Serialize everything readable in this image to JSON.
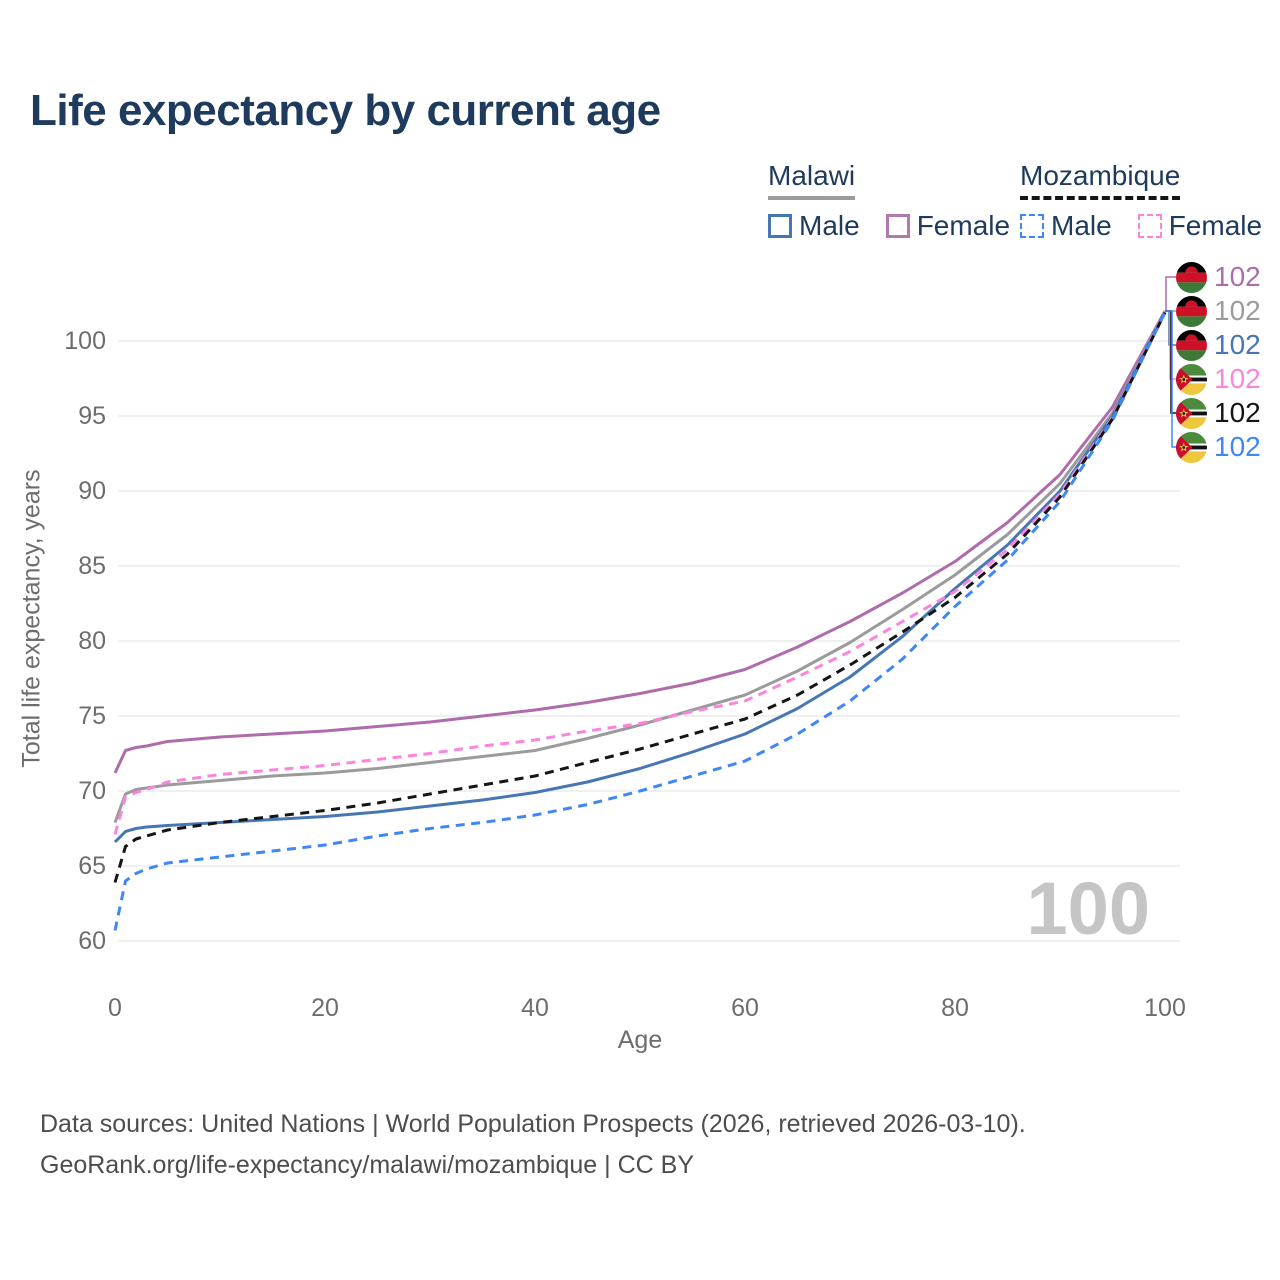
{
  "title": "Life expectancy by current age",
  "legend": {
    "groups": [
      {
        "label": "Malawi",
        "line_style": "solid",
        "line_color": "#9b9b9b",
        "items": [
          {
            "label": "Male",
            "color": "#4677b4"
          },
          {
            "label": "Female",
            "color": "#b279ae"
          }
        ]
      },
      {
        "label": "Mozambique",
        "line_style": "dashed",
        "line_color": "#151515",
        "items": [
          {
            "label": "Male",
            "color": "#3f87f5"
          },
          {
            "label": "Female",
            "color": "#fb84dc"
          }
        ]
      }
    ]
  },
  "y_axis": {
    "title": "Total life expectancy, years",
    "ticks": [
      60,
      65,
      70,
      75,
      80,
      85,
      90,
      95,
      100
    ]
  },
  "x_axis": {
    "title": "Age",
    "ticks": [
      0,
      20,
      40,
      60,
      80,
      100
    ]
  },
  "watermark": "100",
  "footer": {
    "line1": "Data sources: United Nations | World Population Prospects (2026, retrieved 2026-03-10).",
    "line2": "GeoRank.org/life-expectancy/malawi/mozambique | CC BY"
  },
  "colors": {
    "grid": "#ececec",
    "axis_text": "#6d6d6d",
    "title_text": "#1e3a5c",
    "watermark": "#c5c5c5"
  },
  "chart_data": {
    "type": "line",
    "title": "Life expectancy by current age",
    "xlabel": "Age",
    "ylabel": "Total life expectancy, years",
    "xlim": [
      0,
      100
    ],
    "ylim": [
      58.5,
      104.5
    ],
    "grid": "horizontal",
    "legend_position": "top-right",
    "x": [
      0,
      1,
      2,
      3,
      5,
      10,
      15,
      20,
      25,
      30,
      35,
      40,
      45,
      50,
      55,
      60,
      65,
      70,
      75,
      80,
      85,
      90,
      95,
      100
    ],
    "series": [
      {
        "name": "Malawi Female",
        "country": "Malawi",
        "sex": "Female",
        "color": "#ae6cac",
        "dashed": false,
        "flag": "malawi-flag-icon",
        "end_label": "102",
        "values": [
          71.2,
          72.7,
          72.9,
          73.0,
          73.3,
          73.6,
          73.8,
          74.0,
          74.3,
          74.6,
          75.0,
          75.4,
          75.9,
          76.5,
          77.2,
          78.1,
          79.6,
          81.3,
          83.2,
          85.3,
          87.9,
          91.1,
          95.6,
          102.0
        ]
      },
      {
        "name": "Malawi",
        "country": "Malawi",
        "sex": "Both",
        "color": "#9b9b9b",
        "dashed": false,
        "flag": "malawi-flag-icon",
        "end_label": "102",
        "values": [
          67.9,
          69.8,
          70.1,
          70.2,
          70.4,
          70.7,
          71.0,
          71.2,
          71.5,
          71.9,
          72.3,
          72.7,
          73.5,
          74.4,
          75.4,
          76.4,
          78.0,
          79.9,
          82.1,
          84.4,
          87.1,
          90.5,
          95.2,
          102.0
        ]
      },
      {
        "name": "Malawi Male",
        "country": "Malawi",
        "sex": "Male",
        "color": "#4677b4",
        "dashed": false,
        "flag": "malawi-flag-icon",
        "end_label": "102",
        "values": [
          66.6,
          67.3,
          67.5,
          67.6,
          67.7,
          67.9,
          68.1,
          68.3,
          68.6,
          69.0,
          69.4,
          69.9,
          70.6,
          71.5,
          72.6,
          73.8,
          75.5,
          77.6,
          80.3,
          83.5,
          86.4,
          90.0,
          95.0,
          102.0
        ]
      },
      {
        "name": "Mozambique Female",
        "country": "Mozambique",
        "sex": "Female",
        "color": "#fb84dc",
        "dashed": true,
        "flag": "mozambique-flag-icon",
        "end_label": "102",
        "values": [
          67.1,
          69.6,
          69.9,
          70.1,
          70.6,
          71.1,
          71.4,
          71.7,
          72.1,
          72.5,
          73.0,
          73.4,
          74.0,
          74.5,
          75.3,
          76.0,
          77.6,
          79.3,
          81.3,
          83.3,
          86.1,
          89.8,
          94.9,
          102.0
        ]
      },
      {
        "name": "Mozambique",
        "country": "Mozambique",
        "sex": "Both",
        "color": "#151515",
        "dashed": true,
        "flag": "mozambique-flag-icon",
        "end_label": "102",
        "values": [
          63.9,
          66.3,
          66.8,
          67.0,
          67.4,
          67.9,
          68.3,
          68.7,
          69.2,
          69.8,
          70.4,
          71.0,
          71.9,
          72.8,
          73.8,
          74.8,
          76.4,
          78.4,
          80.6,
          82.9,
          85.8,
          89.6,
          94.8,
          101.9
        ]
      },
      {
        "name": "Mozambique Male",
        "country": "Mozambique",
        "sex": "Male",
        "color": "#3f87f5",
        "dashed": true,
        "flag": "mozambique-flag-icon",
        "end_label": "102",
        "values": [
          60.7,
          64.0,
          64.5,
          64.8,
          65.2,
          65.6,
          66.0,
          66.4,
          67.0,
          67.5,
          67.9,
          68.4,
          69.1,
          70.0,
          71.0,
          72.0,
          73.8,
          76.0,
          78.8,
          82.3,
          85.4,
          89.3,
          94.7,
          101.9
        ]
      }
    ]
  }
}
